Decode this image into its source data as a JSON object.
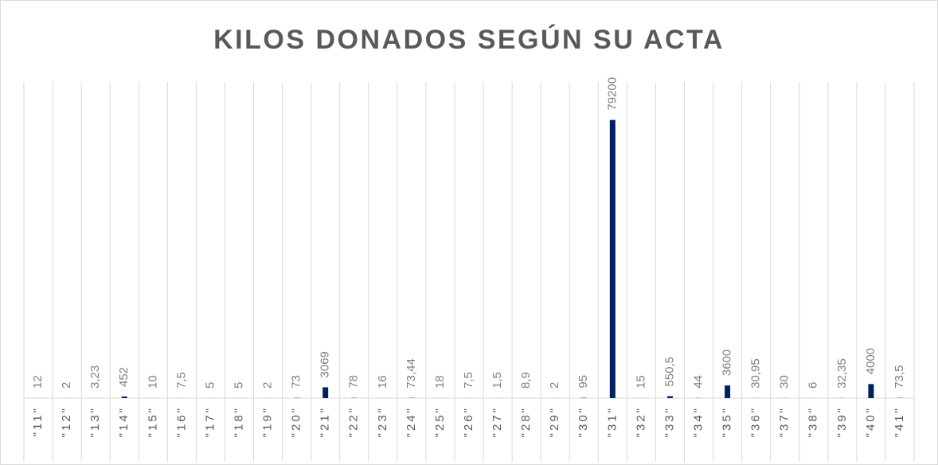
{
  "chart_data": {
    "type": "bar",
    "title": "KILOS DONADOS SEGÚN SU ACTA",
    "categories": [
      "\"11\"",
      "\"12\"",
      "\"13\"",
      "\"14\"",
      "\"15\"",
      "\"16\"",
      "\"17\"",
      "\"18\"",
      "\"19\"",
      "\"20\"",
      "\"21\"",
      "\"22\"",
      "\"23\"",
      "\"24\"",
      "\"25\"",
      "\"26\"",
      "\"27\"",
      "\"28\"",
      "\"29\"",
      "\"30\"",
      "\"31\"",
      "\"32\"",
      "\"33\"",
      "\"34\"",
      "\"35\"",
      "\"36\"",
      "\"37\"",
      "\"38\"",
      "\"39\"",
      "\"40\"",
      "\"41\""
    ],
    "values": [
      12,
      2,
      3.23,
      452,
      10,
      7.5,
      5,
      5,
      2,
      73,
      3069,
      78,
      16,
      73.44,
      18,
      7.5,
      1.5,
      8.9,
      2,
      95,
      79200,
      15,
      550.5,
      44,
      3600,
      30.95,
      30,
      6,
      32.35,
      4000,
      73.5
    ],
    "value_labels": [
      "12",
      "2",
      "3,23",
      "452",
      "10",
      "7,5",
      "5",
      "5",
      "2",
      "73",
      "3069",
      "78",
      "16",
      "73,44",
      "18",
      "7,5",
      "1,5",
      "8,9",
      "2",
      "95",
      "79200",
      "15",
      "550,5",
      "44",
      "3600",
      "30,95",
      "30",
      "6",
      "32,35",
      "4000",
      "73,5"
    ],
    "color": "#002060",
    "ylim": [
      0,
      90000
    ]
  }
}
